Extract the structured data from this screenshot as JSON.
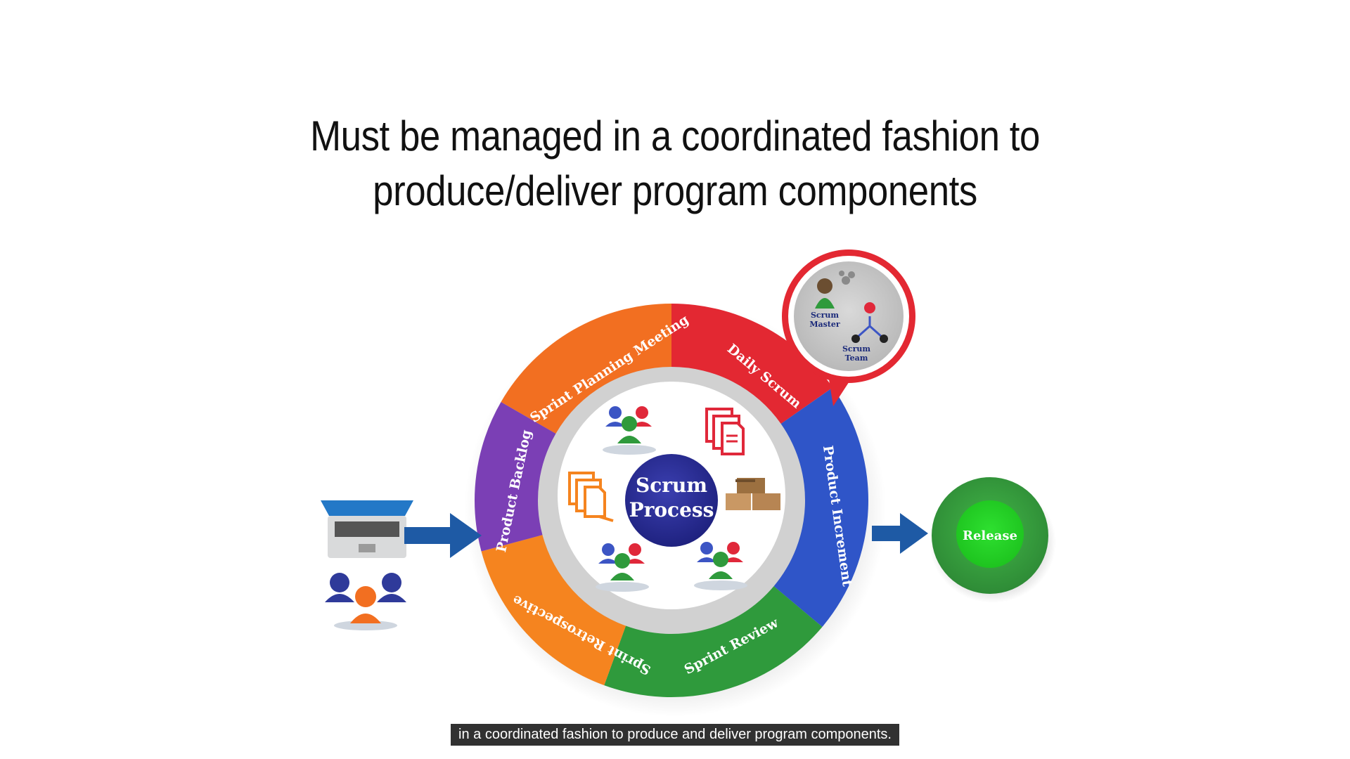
{
  "slide": {
    "title_line1": "Must be managed in a coordinated fashion to",
    "title_line2": "produce/deliver program components"
  },
  "diagram": {
    "center": {
      "line1": "Scrum",
      "line2": "Process"
    },
    "segments": [
      {
        "label": "Sprint Planning Meeting",
        "color": "#f26f21"
      },
      {
        "label": "Daily Scrum",
        "color": "#e32832"
      },
      {
        "label": "Product Increment",
        "color": "#2f55c8"
      },
      {
        "label": "Sprint Review",
        "color": "#2f9a3c"
      },
      {
        "label": "Sprint Retrospective",
        "color": "#f5841f"
      },
      {
        "label": "Product Backlog",
        "color": "#7b3fb5"
      }
    ],
    "roles": {
      "master_line1": "Scrum",
      "master_line2": "Master",
      "team_line1": "Scrum",
      "team_line2": "Team"
    },
    "release": "Release"
  },
  "caption": "in a coordinated fashion to produce and deliver program components."
}
